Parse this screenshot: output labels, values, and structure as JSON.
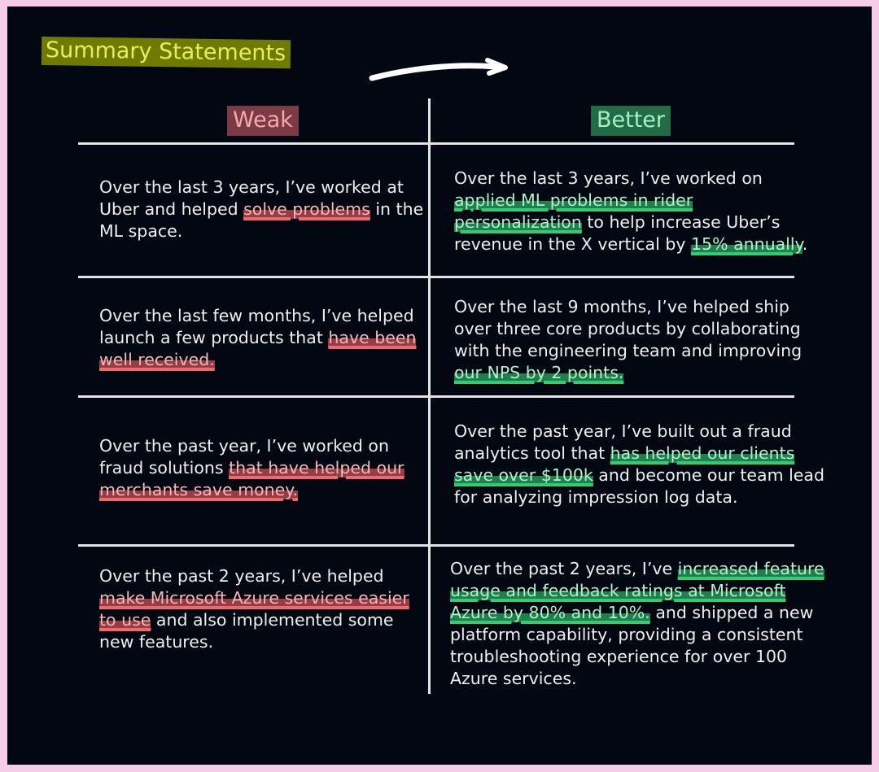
{
  "title": "Summary Statements",
  "headers": {
    "weak": "Weak",
    "better": "Better"
  },
  "colors": {
    "title_bg": "#6f7a00",
    "weak_bg": "#7a3b44",
    "better_bg": "#226b44",
    "red_highlight": "#ee6a6e",
    "green_highlight": "#33cc73",
    "background": "#030712",
    "border": "#f6cde6"
  },
  "rows": [
    {
      "weak": {
        "before": "Over the last 3 years, I’ve worked at Uber and helped ",
        "highlight": "solve problems",
        "after": " in the ML space."
      },
      "better": {
        "before": "Over the last 3 years, I’ve worked on ",
        "highlight": "applied ML problems in rider personalization",
        "middle": " to help increase Uber’s revenue in the X vertical by ",
        "highlight2": "15% annually",
        "after": "."
      }
    },
    {
      "weak": {
        "before": "Over the last few months, I’ve helped launch a few products that ",
        "highlight": "have been well received.",
        "after": ""
      },
      "better": {
        "before": "Over the last 9 months, I’ve helped ship over three core products by collaborating with the engineering team and improving ",
        "highlight": "our NPS by 2 points.",
        "after": ""
      }
    },
    {
      "weak": {
        "before": "Over the past year, I’ve worked on fraud solutions ",
        "highlight": "that have helped our merchants save money.",
        "after": ""
      },
      "better": {
        "before": "Over the past year, I’ve built out a fraud analytics tool that ",
        "highlight": "has helped our clients save over $100k",
        "after": " and become our team lead for analyzing impression log data."
      }
    },
    {
      "weak": {
        "before": "Over the past 2 years, I’ve helped ",
        "highlight": "make Microsoft Azure services easier to use",
        "after": " and also implemented some new features."
      },
      "better": {
        "before": "Over the past 2 years, I’ve ",
        "highlight": "increased feature usage and feedback ratings at Microsoft Azure by 80% and 10%.",
        "after": " and shipped a new platform capability, providing a consistent troubleshooting experience for over 100 Azure services."
      }
    }
  ]
}
